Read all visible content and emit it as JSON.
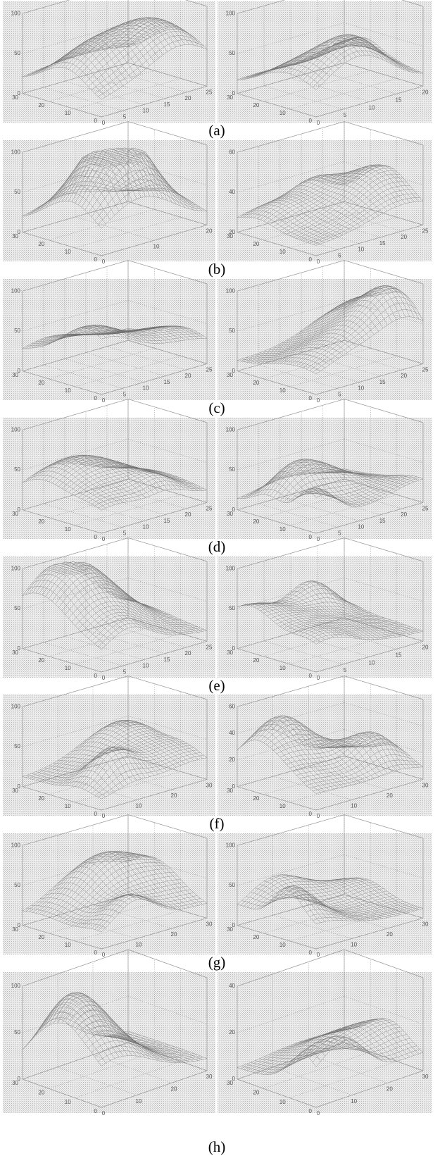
{
  "panels": [
    {
      "caption": "(a)",
      "left": {
        "z": [
          "0",
          "50",
          "100"
        ],
        "y": [
          "0",
          "10",
          "20",
          "30"
        ],
        "x": [
          "0",
          "5",
          "10",
          "15",
          "20",
          "25"
        ]
      },
      "right": {
        "z": [
          "0",
          "50",
          "100"
        ],
        "y": [
          "0",
          "10",
          "20",
          "30"
        ],
        "x": [
          "0",
          "5",
          "10",
          "15",
          "20"
        ]
      }
    },
    {
      "caption": "(b)",
      "left": {
        "z": [
          "0",
          "50",
          "100"
        ],
        "y": [
          "0",
          "10",
          "20",
          "30"
        ],
        "x": [
          "0",
          "10",
          "20"
        ]
      },
      "right": {
        "z": [
          "20",
          "40",
          "60"
        ],
        "y": [
          "0",
          "10",
          "20",
          "30"
        ],
        "x": [
          "0",
          "5",
          "10",
          "15",
          "20",
          "25"
        ]
      }
    },
    {
      "caption": "(c)",
      "left": {
        "z": [
          "0",
          "50",
          "100"
        ],
        "y": [
          "0",
          "10",
          "20",
          "30"
        ],
        "x": [
          "0",
          "5",
          "10",
          "15",
          "20",
          "25"
        ]
      },
      "right": {
        "z": [
          "0",
          "50",
          "100"
        ],
        "y": [
          "0",
          "10",
          "20",
          "30"
        ],
        "x": [
          "0",
          "5",
          "10",
          "15",
          "20",
          "25"
        ]
      }
    },
    {
      "caption": "(d)",
      "left": {
        "z": [
          "0",
          "50",
          "100"
        ],
        "y": [
          "0",
          "10",
          "20",
          "30"
        ],
        "x": [
          "0",
          "5",
          "10",
          "15",
          "20",
          "25"
        ]
      },
      "right": {
        "z": [
          "0",
          "50",
          "100"
        ],
        "y": [
          "0",
          "10",
          "20",
          "30"
        ],
        "x": [
          "0",
          "5",
          "10",
          "15",
          "20",
          "25"
        ]
      }
    },
    {
      "caption": "(e)",
      "left": {
        "z": [
          "0",
          "50",
          "100"
        ],
        "y": [
          "0",
          "10",
          "20",
          "30"
        ],
        "x": [
          "0",
          "5",
          "10",
          "15",
          "20",
          "25"
        ]
      },
      "right": {
        "z": [
          "0",
          "50",
          "100"
        ],
        "y": [
          "0",
          "10",
          "20",
          "30"
        ],
        "x": [
          "0",
          "5",
          "10",
          "15",
          "20"
        ]
      }
    },
    {
      "caption": "(f)",
      "left": {
        "z": [
          "0",
          "50",
          "100"
        ],
        "y": [
          "0",
          "10",
          "20",
          "30"
        ],
        "x": [
          "0",
          "10",
          "20",
          "30"
        ]
      },
      "right": {
        "z": [
          "0",
          "20",
          "40",
          "60"
        ],
        "y": [
          "0",
          "10",
          "20",
          "30"
        ],
        "x": [
          "0",
          "10",
          "20",
          "30"
        ]
      }
    },
    {
      "caption": "(g)",
      "left": {
        "z": [
          "0",
          "50",
          "100"
        ],
        "y": [
          "0",
          "10",
          "20",
          "30"
        ],
        "x": [
          "0",
          "10",
          "20",
          "30"
        ]
      },
      "right": {
        "z": [
          "0",
          "50",
          "100"
        ],
        "y": [
          "0",
          "10",
          "20",
          "30"
        ],
        "x": [
          "0",
          "10",
          "20",
          "30"
        ]
      }
    },
    {
      "caption": "(h)",
      "left": {
        "z": [
          "0",
          "50",
          "100"
        ],
        "y": [
          "0",
          "10",
          "20",
          "30"
        ],
        "x": [
          "0",
          "10",
          "20",
          "30"
        ]
      },
      "right": {
        "z": [
          "0",
          "20",
          "40"
        ],
        "y": [
          "0",
          "10",
          "20",
          "30"
        ],
        "x": [
          "0",
          "10",
          "20",
          "30"
        ]
      }
    }
  ]
}
